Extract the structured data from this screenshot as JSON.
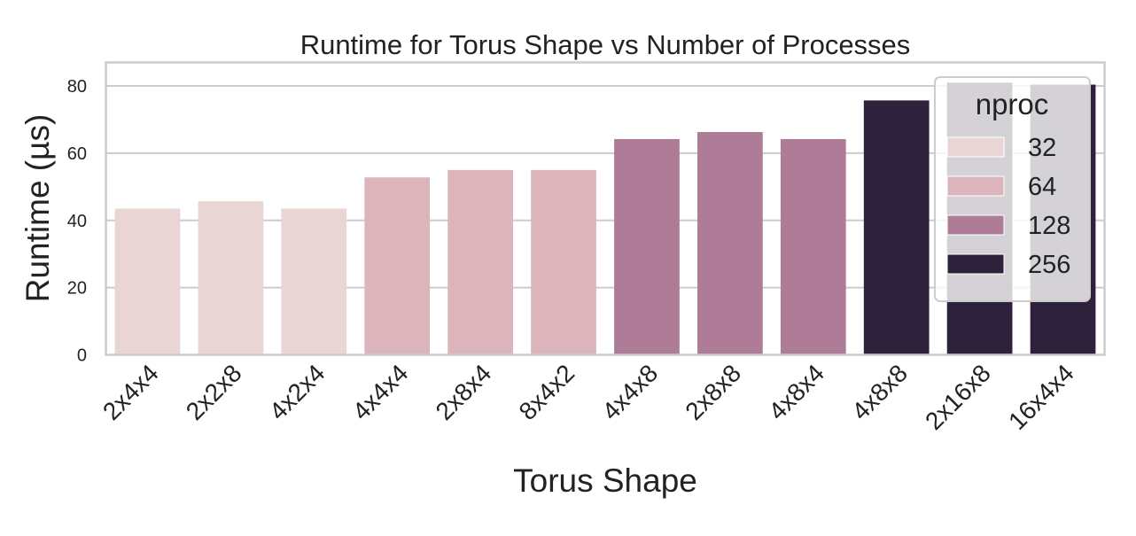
{
  "chart_data": {
    "type": "bar",
    "title": "Runtime for Torus Shape vs Number of Processes",
    "xlabel": "Torus Shape",
    "ylabel": "Runtime (µs)",
    "ylim": [
      0,
      87
    ],
    "yticks": [
      0,
      20,
      40,
      60,
      80
    ],
    "grid": "horizontal",
    "categories": [
      "2x4x4",
      "2x2x8",
      "4x2x4",
      "4x4x4",
      "2x8x4",
      "8x4x2",
      "4x4x8",
      "2x8x8",
      "4x8x4",
      "4x8x8",
      "2x16x8",
      "16x4x4"
    ],
    "values": [
      43.5,
      45.7,
      43.5,
      52.8,
      55.0,
      55.0,
      64.2,
      66.3,
      64.2,
      75.7,
      81.0,
      80.4
    ],
    "nproc": [
      32,
      32,
      32,
      64,
      64,
      64,
      128,
      128,
      128,
      256,
      256,
      256
    ],
    "legend": {
      "title": "nproc",
      "placement": "top-right",
      "entries": [
        {
          "label": "32",
          "color": "#e9d5d3"
        },
        {
          "label": "64",
          "color": "#dbb5bb"
        },
        {
          "label": "128",
          "color": "#af7c97"
        },
        {
          "label": "256",
          "color": "#2e213b"
        }
      ]
    }
  }
}
